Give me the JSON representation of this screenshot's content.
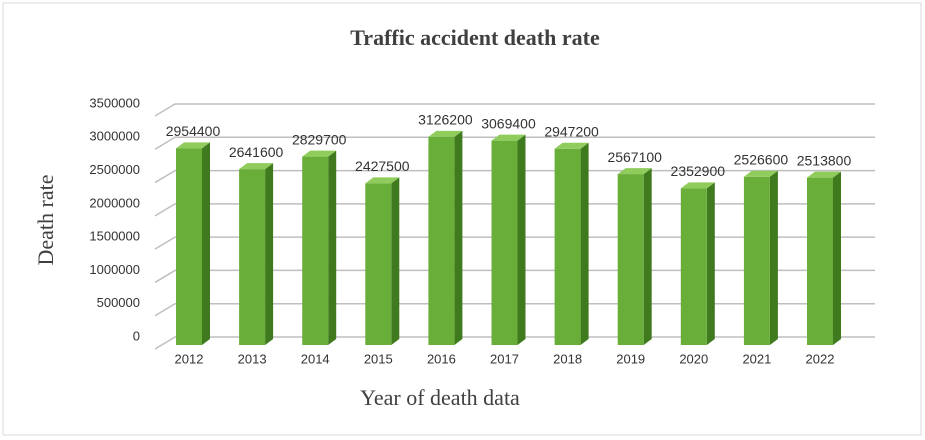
{
  "chart_data": {
    "type": "bar",
    "title": "Traffic accident death rate",
    "x_label": "Year of death data",
    "y_label": "Death rate",
    "categories": [
      "2012",
      "2013",
      "2014",
      "2015",
      "2016",
      "2017",
      "2018",
      "2019",
      "2020",
      "2021",
      "2022"
    ],
    "values": [
      2954400,
      2641600,
      2829700,
      2427500,
      3126200,
      3069400,
      2947200,
      2567100,
      2352900,
      2526600,
      2513800
    ],
    "color": "#6aae3a",
    "ylim": [
      0,
      3500000
    ],
    "yticks": [
      0,
      500000,
      1000000,
      1500000,
      2000000,
      2500000,
      3000000,
      3500000
    ],
    "grid": true
  }
}
